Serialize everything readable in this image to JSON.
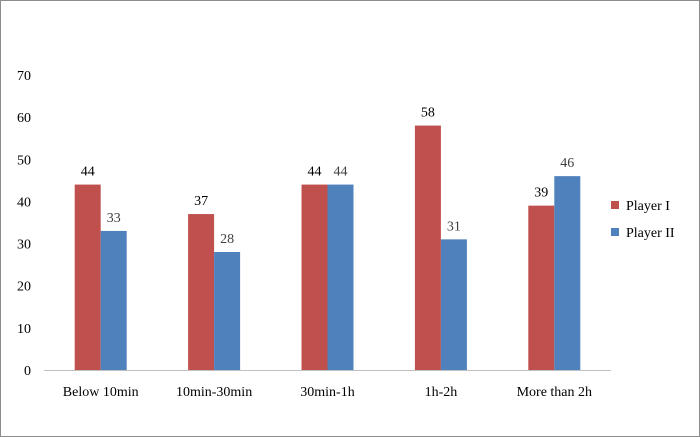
{
  "chart_data": {
    "type": "bar",
    "title": "",
    "xlabel": "",
    "ylabel": "",
    "ylim": [
      0,
      70
    ],
    "yticks": [
      0,
      10,
      20,
      30,
      40,
      50,
      60,
      70
    ],
    "grid": false,
    "legend_position": "right",
    "categories": [
      "Below 10min",
      "10min-30min",
      "30min-1h",
      "1h-2h",
      "More than 2h"
    ],
    "series": [
      {
        "name": "Player I",
        "color": "#c0504d",
        "values": [
          44,
          37,
          44,
          58,
          39
        ]
      },
      {
        "name": "Player II",
        "color": "#4f81bd",
        "values": [
          33,
          28,
          44,
          31,
          46
        ]
      }
    ]
  }
}
